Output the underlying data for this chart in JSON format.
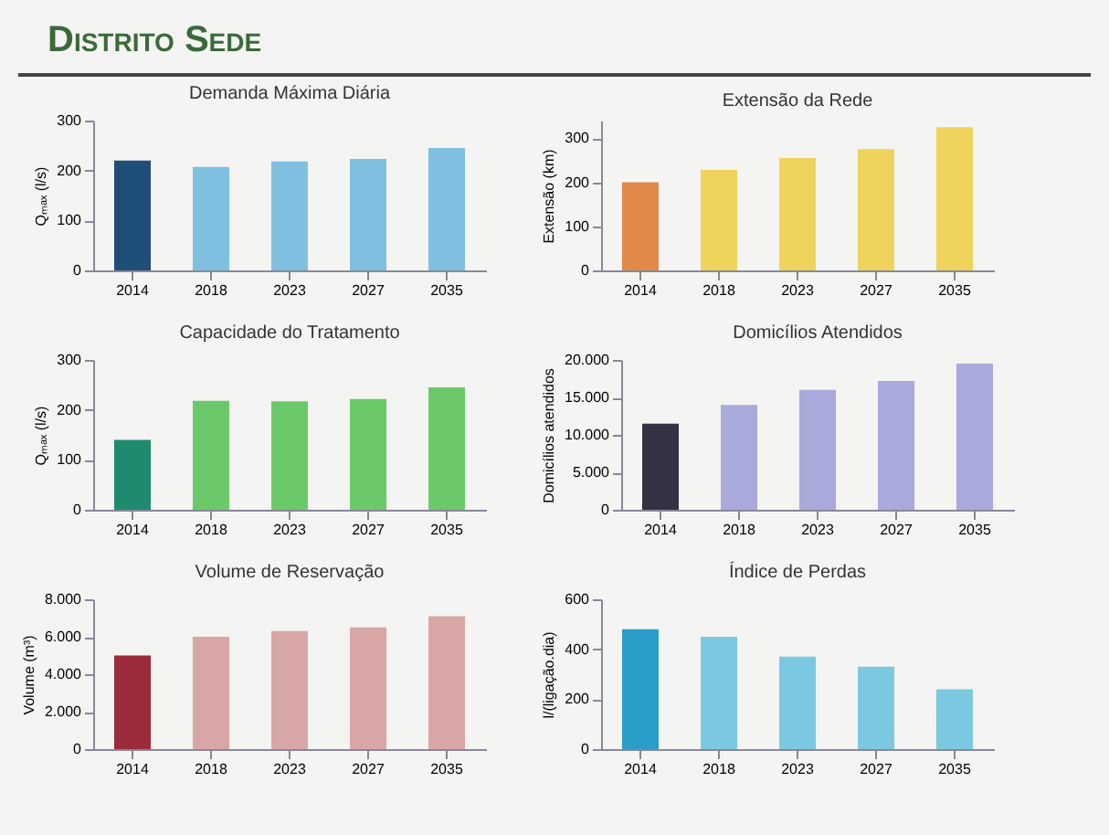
{
  "chart_data": [
    {
      "type": "other",
      "title": "Distrito Sede"
    },
    {
      "type": "bar",
      "title": "Demanda Máxima Diária",
      "ylabel": "Qₘₐₓ (l/s)",
      "categories": [
        "2014",
        "2018",
        "2023",
        "2027",
        "2035"
      ],
      "values": [
        220,
        207,
        218,
        223,
        245
      ],
      "colors": [
        "#1f4e79",
        "#7fbfe0",
        "#7fbfe0",
        "#7fbfe0",
        "#7fbfe0"
      ],
      "ylim": [
        0,
        300
      ],
      "yticks": [
        0,
        100,
        200,
        300
      ]
    },
    {
      "type": "bar",
      "title": "Extensão da Rede",
      "ylabel": "Extensão (km)",
      "categories": [
        "2014",
        "2018",
        "2023",
        "2027",
        "2035"
      ],
      "values": [
        200,
        228,
        255,
        275,
        325
      ],
      "colors": [
        "#e0894a",
        "#efd35c",
        "#efd35c",
        "#efd35c",
        "#efd35c"
      ],
      "ylim": [
        0,
        340
      ],
      "yticks": [
        0,
        100,
        200,
        300
      ]
    },
    {
      "type": "bar",
      "title": "Capacidade do Tratamento",
      "ylabel": "Qₘₐₓ (l/s)",
      "categories": [
        "2014",
        "2018",
        "2023",
        "2027",
        "2035"
      ],
      "values": [
        140,
        218,
        217,
        222,
        245
      ],
      "colors": [
        "#1e8a70",
        "#6cc96a",
        "#6cc96a",
        "#6cc96a",
        "#6cc96a"
      ],
      "ylim": [
        0,
        300
      ],
      "yticks": [
        0,
        100,
        200,
        300
      ]
    },
    {
      "type": "bar",
      "title": "Domicílios Atendidos",
      "ylabel": "Domicílios atendidos",
      "categories": [
        "2014",
        "2018",
        "2023",
        "2027",
        "2035"
      ],
      "values": [
        11500,
        14000,
        16000,
        17200,
        19500
      ],
      "colors": [
        "#333344",
        "#a9a9dc",
        "#a9a9dc",
        "#a9a9dc",
        "#a9a9dc"
      ],
      "ylim": [
        0,
        20000
      ],
      "yticks": [
        {
          "value": 0,
          "label": "0"
        },
        {
          "value": 5000,
          "label": "5.000"
        },
        {
          "value": 10000,
          "label": "10.000"
        },
        {
          "value": 15000,
          "label": "15.000"
        },
        {
          "value": 20000,
          "label": "20.000"
        }
      ]
    },
    {
      "type": "bar",
      "title": "Volume de Reservação",
      "ylabel": "Volume (m³)",
      "categories": [
        "2014",
        "2018",
        "2023",
        "2027",
        "2035"
      ],
      "values": [
        5000,
        6000,
        6300,
        6500,
        7100
      ],
      "colors": [
        "#9b2b3a",
        "#d9a6a6",
        "#d9a6a6",
        "#d9a6a6",
        "#d9a6a6"
      ],
      "ylim": [
        0,
        8000
      ],
      "yticks": [
        {
          "value": 0,
          "label": "0"
        },
        {
          "value": 2000,
          "label": "2.000"
        },
        {
          "value": 4000,
          "label": "4.000"
        },
        {
          "value": 6000,
          "label": "6.000"
        },
        {
          "value": 8000,
          "label": "8.000"
        }
      ]
    },
    {
      "type": "bar",
      "title": "Índice de Perdas",
      "ylabel": "l/(ligação.dia)",
      "categories": [
        "2014",
        "2018",
        "2023",
        "2027",
        "2035"
      ],
      "values": [
        480,
        450,
        370,
        330,
        240
      ],
      "colors": [
        "#2a9dc8",
        "#7cc8e0",
        "#7cc8e0",
        "#7cc8e0",
        "#7cc8e0"
      ],
      "ylim": [
        0,
        600
      ],
      "yticks": [
        0,
        200,
        400,
        600
      ]
    }
  ]
}
